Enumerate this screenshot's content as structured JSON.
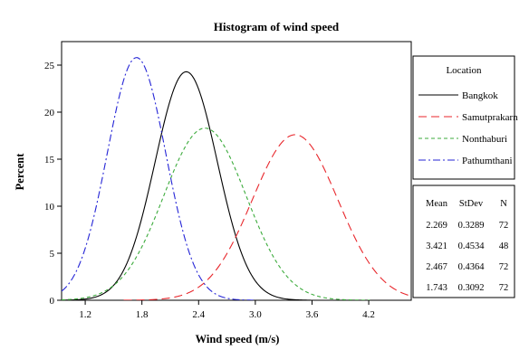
{
  "chart_data": {
    "type": "line",
    "title": "Histogram of wind speed",
    "xlabel": "Wind speed (m/s)",
    "ylabel": "Percent",
    "xlim": [
      0.95,
      4.65
    ],
    "ylim": [
      0,
      27.5
    ],
    "x_ticks": [
      1.2,
      1.8,
      2.4,
      3.0,
      3.6,
      4.2
    ],
    "y_ticks": [
      0,
      5,
      10,
      15,
      20,
      25
    ],
    "x_tick_labels": [
      "1.2",
      "1.8",
      "2.4",
      "3.0",
      "3.6",
      "4.2"
    ],
    "y_tick_labels": [
      "0",
      "5",
      "10",
      "15",
      "20",
      "25"
    ],
    "grid": false,
    "legend": {
      "title": "Location",
      "placement": "right"
    },
    "series": [
      {
        "name": "Bangkok",
        "mean": 2.269,
        "stdev": 0.3289,
        "n": 72,
        "peak": 24.3,
        "color": "#000000",
        "dash": "solid"
      },
      {
        "name": "Samutprakarn",
        "mean": 3.421,
        "stdev": 0.4534,
        "n": 48,
        "peak": 17.6,
        "color": "#e8262b",
        "dash": "long-dash"
      },
      {
        "name": "Nonthaburi",
        "mean": 2.467,
        "stdev": 0.4364,
        "n": 72,
        "peak": 18.3,
        "color": "#3cab3c",
        "dash": "short-dash"
      },
      {
        "name": "Pathumthani",
        "mean": 1.743,
        "stdev": 0.3092,
        "n": 72,
        "peak": 25.8,
        "color": "#2424d6",
        "dash": "dash-dot"
      }
    ],
    "stats_table": {
      "headers": [
        "Mean",
        "StDev",
        "N"
      ],
      "rows": [
        [
          "2.269",
          "0.3289",
          "72"
        ],
        [
          "3.421",
          "0.4534",
          "48"
        ],
        [
          "2.467",
          "0.4364",
          "72"
        ],
        [
          "1.743",
          "0.3092",
          "72"
        ]
      ]
    }
  }
}
